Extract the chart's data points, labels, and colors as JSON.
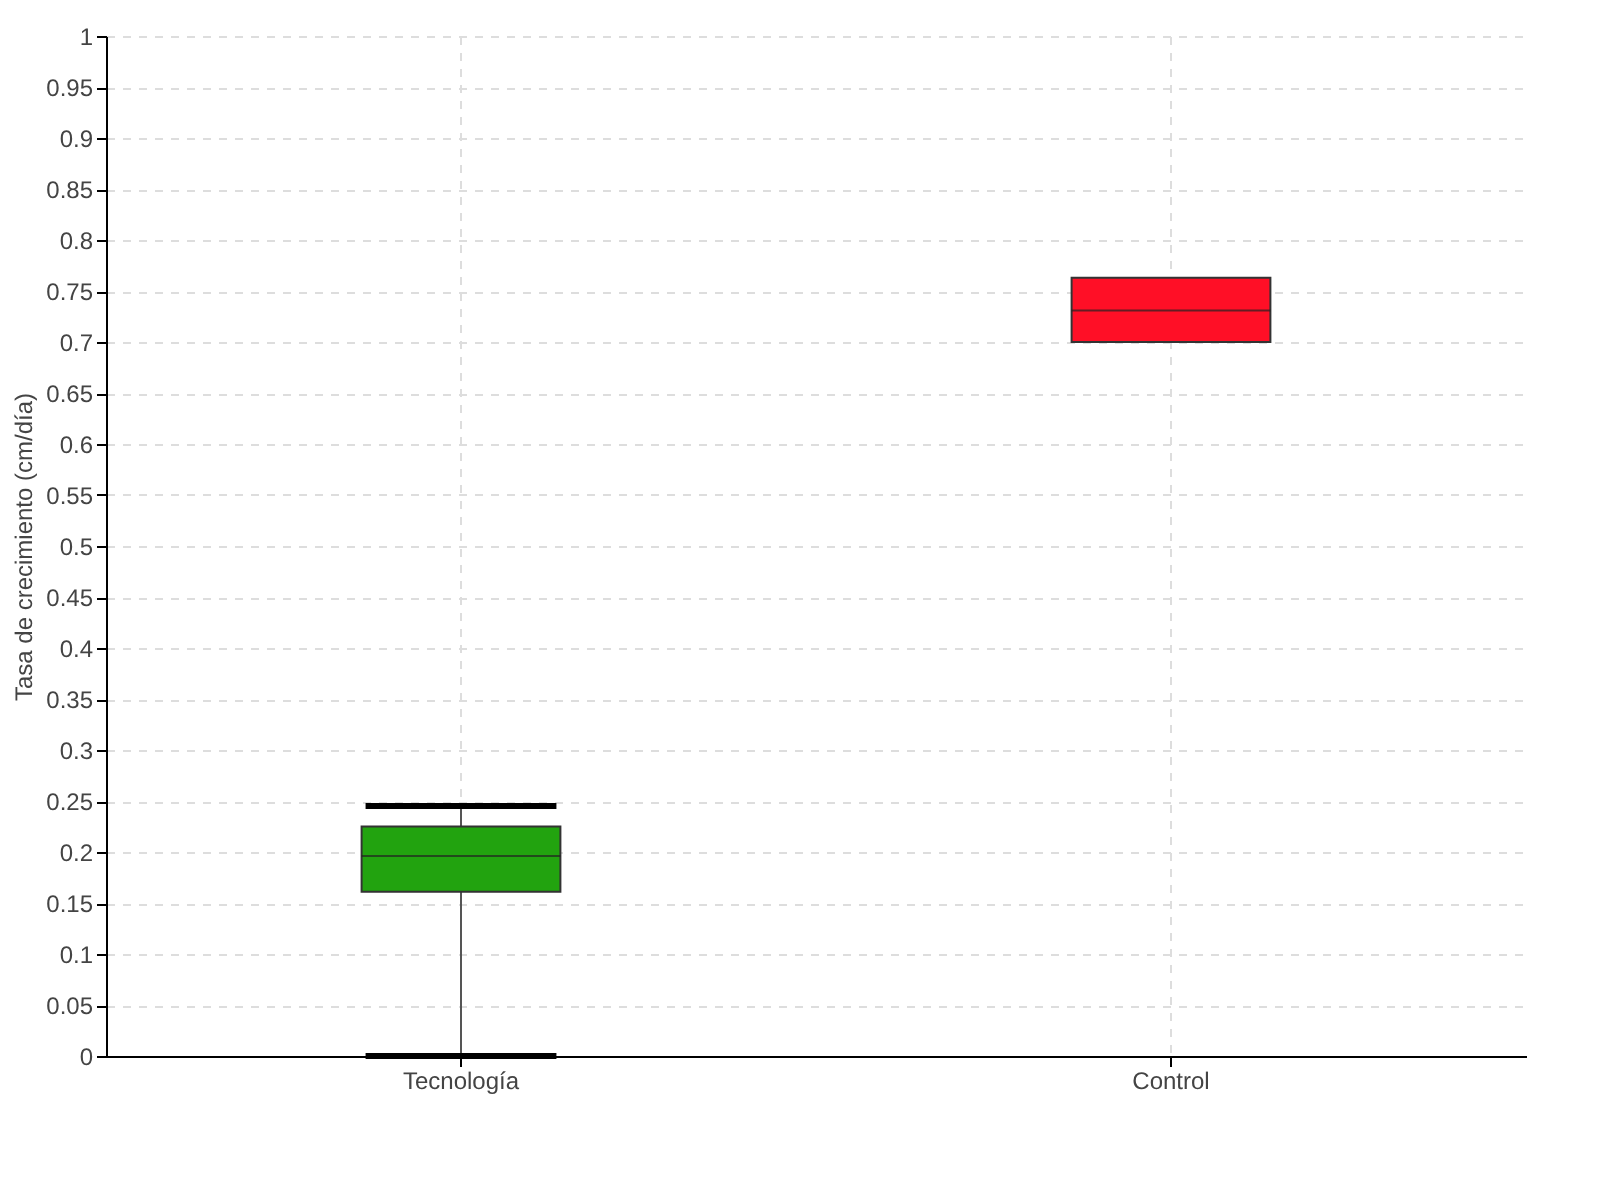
{
  "chart_data": {
    "type": "box",
    "ylabel": "Tasa de crecimiento (cm/día)",
    "categories": [
      "Tecnología",
      "Control"
    ],
    "boxes": [
      {
        "low": 0,
        "q1": 0.161,
        "median": 0.196,
        "q3": 0.225,
        "high": 0.245
      },
      {
        "low": 0.7,
        "q1": 0.7,
        "median": 0.731,
        "q3": 0.763,
        "high": 0.763
      }
    ],
    "colors": [
      "#22a30f",
      "#ff0f26"
    ],
    "ylim": [
      0,
      1
    ],
    "yticks": [
      0,
      0.05,
      0.1,
      0.15,
      0.2,
      0.25,
      0.3,
      0.35,
      0.4,
      0.45,
      0.5,
      0.55,
      0.6,
      0.65,
      0.7,
      0.75,
      0.8,
      0.85,
      0.9,
      0.95,
      1
    ],
    "grid": true
  }
}
